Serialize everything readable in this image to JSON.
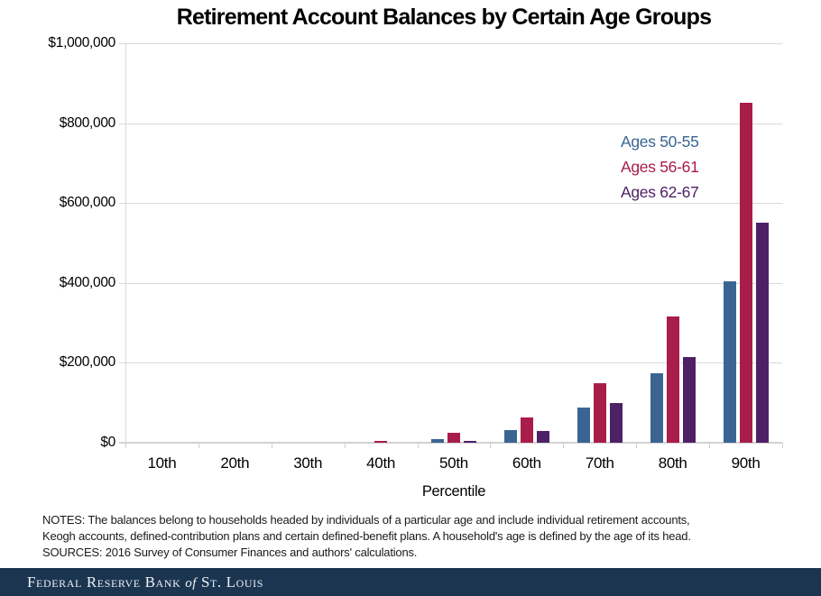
{
  "title": "Retirement Account Balances by Certain Age Groups",
  "chart_data": {
    "type": "bar",
    "title": "Retirement Account Balances by Certain Age Groups",
    "categories": [
      "10th",
      "20th",
      "30th",
      "40th",
      "50th",
      "60th",
      "70th",
      "80th",
      "90th"
    ],
    "series": [
      {
        "name": "Ages 50-55",
        "color": "#3A6593",
        "values": [
          0,
          0,
          0,
          0,
          10000,
          32000,
          87000,
          173000,
          404000
        ]
      },
      {
        "name": "Ages 56-61",
        "color": "#A81D49",
        "values": [
          0,
          0,
          0,
          4000,
          25000,
          64000,
          148000,
          317000,
          850000
        ]
      },
      {
        "name": "Ages 62-67",
        "color": "#4E2166",
        "values": [
          0,
          0,
          0,
          0,
          4000,
          30000,
          100000,
          215000,
          550000
        ]
      }
    ],
    "xlabel": "Percentile",
    "ylabel": "",
    "ylim": [
      0,
      1000000
    ],
    "yticks": [
      0,
      200000,
      400000,
      600000,
      800000,
      1000000
    ],
    "ytick_labels": [
      "$0",
      "$200,000",
      "$400,000",
      "$600,000",
      "$800,000",
      "$1,000,000"
    ],
    "grid": true,
    "legend_position": "inside-upper-right"
  },
  "notes": {
    "line1": "NOTES: The balances belong to households headed by individuals of a particular age and include individual retirement accounts,",
    "line2": "Keogh accounts, defined-contribution plans and certain defined-benefit plans. A household's age is defined by the age of its head.",
    "line3": "SOURCES: 2016 Survey of Consumer Finances and authors' calculations."
  },
  "footer": {
    "left": "Federal Reserve Bank",
    "of": "of",
    "right": "St. Louis"
  },
  "colors": {
    "gridline": "#D9D9D9",
    "axis_line": "#CFCFCF",
    "footer_bg": "#1B3551",
    "footer_text": "#EDF1F5"
  }
}
